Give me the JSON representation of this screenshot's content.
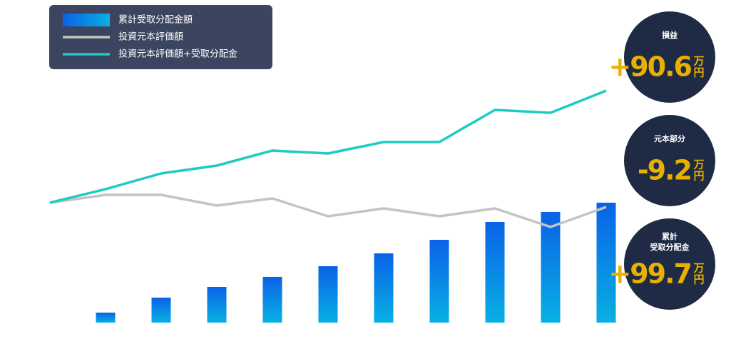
{
  "chart_data": {
    "type": "bar",
    "categories": [
      null,
      null,
      null,
      null,
      null,
      null,
      null,
      null,
      null,
      null,
      null
    ],
    "ylim": [
      0,
      350
    ],
    "legend": "top-left",
    "series": [
      {
        "name": "累計受取分配金額",
        "type": "bar",
        "color": "#0a6ae6",
        "values": [
          null,
          14,
          35,
          50,
          64,
          79,
          97,
          116,
          141,
          155,
          168
        ]
      },
      {
        "name": "投資元本評価額",
        "type": "line",
        "color": "#c4c4c4",
        "values": [
          168,
          179,
          179,
          164,
          174,
          149,
          160,
          149,
          160,
          134,
          162
        ]
      },
      {
        "name": "投資元本評価額+受取分配金",
        "type": "line",
        "color": "#1ecbc3",
        "values": [
          168,
          187,
          209,
          220,
          241,
          237,
          253,
          253,
          298,
          294,
          325
        ]
      }
    ],
    "annotations": [
      {
        "label": "損益",
        "value": "+90.6",
        "unit_top": "万",
        "unit_bottom": "円"
      },
      {
        "label": "元本部分",
        "value": "-9.2",
        "unit_top": "万",
        "unit_bottom": "円"
      },
      {
        "label": "累計\n受取分配金",
        "value": "+99.7",
        "unit_top": "万",
        "unit_bottom": "円"
      }
    ]
  }
}
